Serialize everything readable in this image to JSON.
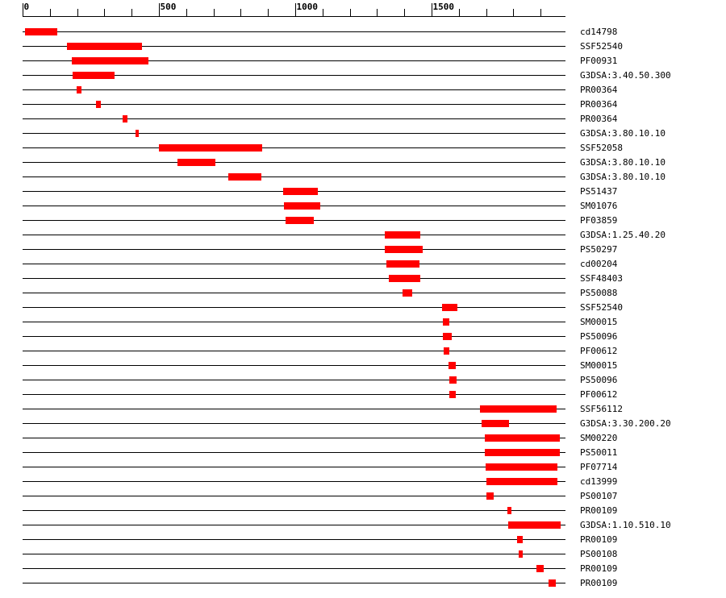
{
  "chart_data": {
    "type": "domains",
    "color": "#ff0000",
    "xlim": [
      0,
      1991
    ],
    "xticks": [
      0,
      500,
      1000,
      1500
    ],
    "minor_xticks": [
      0,
      100,
      200,
      300,
      400,
      500,
      600,
      700,
      800,
      900,
      1000,
      1100,
      1200,
      1300,
      1400,
      1500,
      1600,
      1700,
      1800,
      1900
    ],
    "tracks": [
      {
        "label": "cd14798",
        "start": 9,
        "end": 127
      },
      {
        "label": "SSF52540",
        "start": 163,
        "end": 438
      },
      {
        "label": "PF00931",
        "start": 180,
        "end": 462
      },
      {
        "label": "G3DSA:3.40.50.300",
        "start": 183,
        "end": 337
      },
      {
        "label": "PR00364",
        "start": 198,
        "end": 216
      },
      {
        "label": "PR00364",
        "start": 269,
        "end": 287
      },
      {
        "label": "PR00364",
        "start": 367,
        "end": 385
      },
      {
        "label": "G3DSA:3.80.10.10",
        "start": 414,
        "end": 426
      },
      {
        "label": "SSF52058",
        "start": 500,
        "end": 879
      },
      {
        "label": "G3DSA:3.80.10.10",
        "start": 568,
        "end": 707
      },
      {
        "label": "G3DSA:3.80.10.10",
        "start": 754,
        "end": 876
      },
      {
        "label": "PS51437",
        "start": 956,
        "end": 1083
      },
      {
        "label": "SM01076",
        "start": 959,
        "end": 1092
      },
      {
        "label": "PF03859",
        "start": 964,
        "end": 1068
      },
      {
        "label": "G3DSA:1.25.40.20",
        "start": 1328,
        "end": 1459
      },
      {
        "label": "PS50297",
        "start": 1328,
        "end": 1467
      },
      {
        "label": "cd00204",
        "start": 1334,
        "end": 1456
      },
      {
        "label": "SSF48403",
        "start": 1343,
        "end": 1459
      },
      {
        "label": "PS50088",
        "start": 1393,
        "end": 1429
      },
      {
        "label": "SSF52540",
        "start": 1538,
        "end": 1595
      },
      {
        "label": "SM00015",
        "start": 1541,
        "end": 1565
      },
      {
        "label": "PS50096",
        "start": 1541,
        "end": 1574
      },
      {
        "label": "PF00612",
        "start": 1544,
        "end": 1565
      },
      {
        "label": "SM00015",
        "start": 1562,
        "end": 1589
      },
      {
        "label": "PS50096",
        "start": 1565,
        "end": 1592
      },
      {
        "label": "PF00612",
        "start": 1565,
        "end": 1589
      },
      {
        "label": "SSF56112",
        "start": 1678,
        "end": 1959
      },
      {
        "label": "G3DSA:3.30.200.20",
        "start": 1683,
        "end": 1784
      },
      {
        "label": "SM00220",
        "start": 1695,
        "end": 1970
      },
      {
        "label": "PS50011",
        "start": 1695,
        "end": 1970
      },
      {
        "label": "PF07714",
        "start": 1698,
        "end": 1962
      },
      {
        "label": "cd13999",
        "start": 1701,
        "end": 1962
      },
      {
        "label": "PS00107",
        "start": 1701,
        "end": 1728
      },
      {
        "label": "PR00109",
        "start": 1778,
        "end": 1793
      },
      {
        "label": "G3DSA:1.10.510.10",
        "start": 1781,
        "end": 1973
      },
      {
        "label": "PR00109",
        "start": 1814,
        "end": 1834
      },
      {
        "label": "PS00108",
        "start": 1820,
        "end": 1834
      },
      {
        "label": "PR00109",
        "start": 1885,
        "end": 1911
      },
      {
        "label": "PR00109",
        "start": 1929,
        "end": 1956
      }
    ]
  }
}
